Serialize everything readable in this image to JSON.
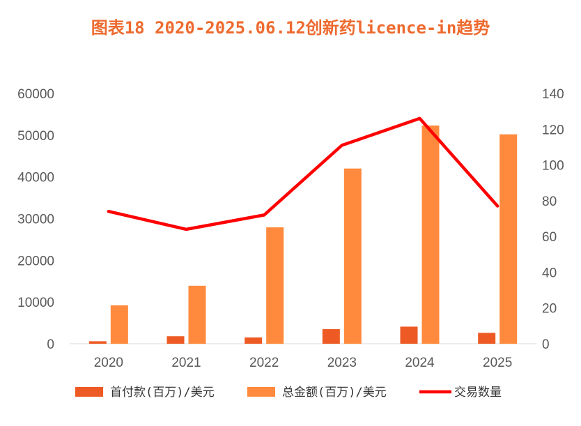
{
  "chart_data": {
    "type": "bar",
    "title": "图表18 2020-2025.06.12创新药licence-in趋势",
    "categories": [
      "2020",
      "2021",
      "2022",
      "2023",
      "2024",
      "2025"
    ],
    "series": [
      {
        "name": "首付款(百万)/美元",
        "type": "bar",
        "axis": "left",
        "color": "#EE5A24",
        "values": [
          600,
          1800,
          1500,
          3500,
          4100,
          2600
        ]
      },
      {
        "name": "总金额(百万)/美元",
        "type": "bar",
        "axis": "left",
        "color": "#FF8A3D",
        "values": [
          9200,
          13900,
          27900,
          42000,
          52300,
          50200
        ]
      },
      {
        "name": "交易数量",
        "type": "line",
        "axis": "right",
        "color": "#FF0000",
        "values": [
          74,
          64,
          72,
          111,
          126,
          77
        ]
      }
    ],
    "y_left": {
      "lim": [
        0,
        60000
      ],
      "ticks": [
        0,
        10000,
        20000,
        30000,
        40000,
        50000,
        60000
      ]
    },
    "y_right": {
      "lim": [
        0,
        140
      ],
      "ticks": [
        0,
        20,
        40,
        60,
        80,
        100,
        120,
        140
      ]
    },
    "grid": false,
    "legend_position": "bottom"
  }
}
